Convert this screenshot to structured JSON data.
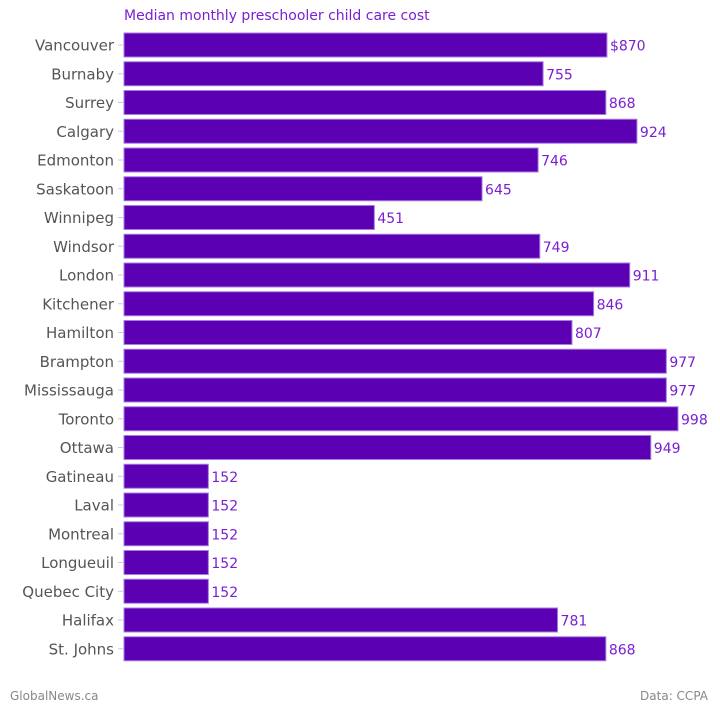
{
  "chart_data": {
    "type": "bar",
    "orientation": "horizontal",
    "title": "Median monthly preschooler child care cost",
    "xlabel": "",
    "ylabel": "",
    "xlim": [
      0,
      1000
    ],
    "grid": false,
    "categories": [
      "Vancouver",
      "Burnaby",
      "Surrey",
      "Calgary",
      "Edmonton",
      "Saskatoon",
      "Winnipeg",
      "Windsor",
      "London",
      "Kitchener",
      "Hamilton",
      "Brampton",
      "Mississauga",
      "Toronto",
      "Ottawa",
      "Gatineau",
      "Laval",
      "Montreal",
      "Longueuil",
      "Quebec City",
      "Halifax",
      "St. Johns"
    ],
    "values": [
      870,
      755,
      868,
      924,
      746,
      645,
      451,
      749,
      911,
      846,
      807,
      977,
      977,
      998,
      949,
      152,
      152,
      152,
      152,
      152,
      781,
      868
    ],
    "data_labels": [
      "$870",
      "755",
      "868",
      "924",
      "746",
      "645",
      "451",
      "749",
      "911",
      "846",
      "807",
      "977",
      "977",
      "998",
      "949",
      "152",
      "152",
      "152",
      "152",
      "152",
      "781",
      "868"
    ],
    "bar_color": "#5c00b3",
    "label_color": "#7a1fd1"
  },
  "footer": {
    "source_left": "GlobalNews.ca",
    "source_right": "Data:  CCPA"
  }
}
